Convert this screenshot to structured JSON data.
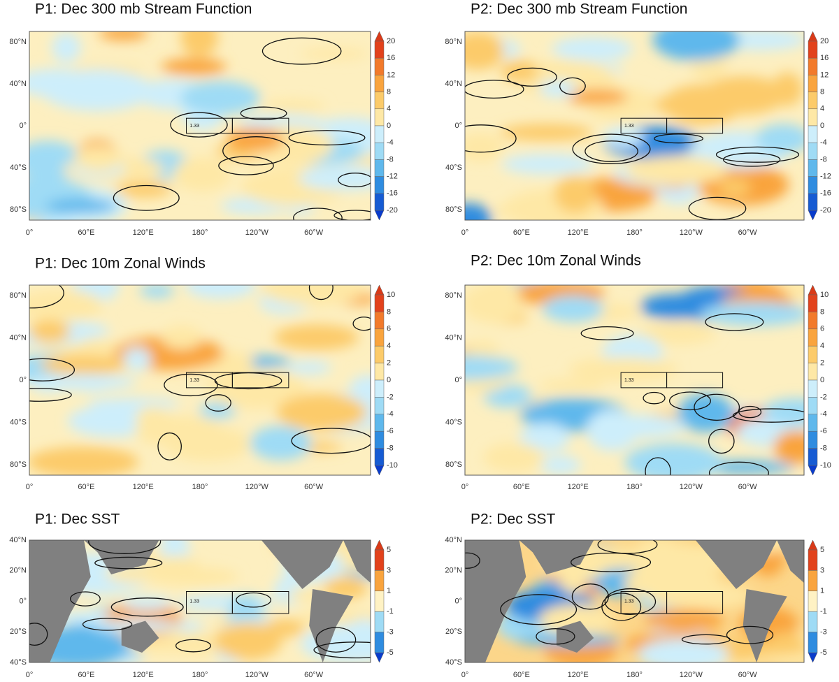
{
  "panels": [
    {
      "title": "P1: Dec 300 mb Stream Function",
      "x_labels": [
        "0°",
        "60°E",
        "120°E",
        "180°",
        "120°W",
        "60°W"
      ],
      "y_labels": [
        "80°N",
        "40°N",
        "0°",
        "40°S",
        "80°S"
      ],
      "colorbar_labels": [
        "20",
        "16",
        "12",
        "8",
        "4",
        "0",
        "-4",
        "-8",
        "-12",
        "-16",
        "-20"
      ],
      "contour_label": "1.33"
    },
    {
      "title": "P2: Dec 300 mb Stream Function",
      "x_labels": [
        "0°",
        "60°E",
        "120°E",
        "180°",
        "120°W",
        "60°W"
      ],
      "y_labels": [
        "80°N",
        "40°N",
        "0°",
        "40°S",
        "80°S"
      ],
      "colorbar_labels": [
        "20",
        "16",
        "12",
        "8",
        "4",
        "0",
        "-4",
        "-8",
        "-12",
        "-16",
        "-20"
      ],
      "contour_label": "1.33"
    },
    {
      "title": "P1: Dec 10m Zonal Winds",
      "x_labels": [
        "0°",
        "60°E",
        "120°E",
        "180°",
        "120°W",
        "60°W"
      ],
      "y_labels": [
        "80°N",
        "40°N",
        "0°",
        "40°S",
        "80°S"
      ],
      "colorbar_labels": [
        "10",
        "8",
        "6",
        "4",
        "2",
        "0",
        "-2",
        "-4",
        "-6",
        "-8",
        "-10"
      ],
      "contour_label": "1.33"
    },
    {
      "title": "P2: Dec 10m Zonal Winds",
      "x_labels": [
        "0°",
        "60°E",
        "120°E",
        "180°",
        "120°W",
        "60°W"
      ],
      "y_labels": [
        "80°N",
        "40°N",
        "0°",
        "40°S",
        "80°S"
      ],
      "colorbar_labels": [
        "10",
        "8",
        "6",
        "4",
        "2",
        "0",
        "-2",
        "-4",
        "-6",
        "-8",
        "-10"
      ],
      "contour_label": "1.33"
    },
    {
      "title": "P1: Dec SST",
      "x_labels": [
        "0°",
        "60°E",
        "120°E",
        "180°",
        "120°W",
        "60°W"
      ],
      "y_labels": [
        "40°N",
        "20°N",
        "0°",
        "20°S",
        "40°S"
      ],
      "colorbar_labels": [
        "5",
        "3",
        "1",
        "-1",
        "-3",
        "-5"
      ],
      "contour_label": "1.33"
    },
    {
      "title": "P2: Dec SST",
      "x_labels": [
        "0°",
        "60°E",
        "120°E",
        "180°",
        "120°W",
        "60°W"
      ],
      "y_labels": [
        "40°N",
        "20°N",
        "0°",
        "20°S",
        "40°S"
      ],
      "colorbar_labels": [
        "5",
        "3",
        "1",
        "-1",
        "-3",
        "-5"
      ],
      "contour_label": "1.33"
    }
  ]
}
